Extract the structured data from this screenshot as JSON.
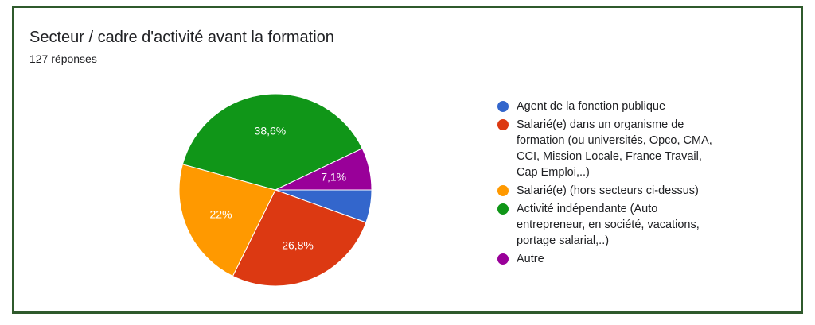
{
  "card": {
    "title": "Secteur / cadre d'activité avant la formation",
    "responses": "127 réponses"
  },
  "chart_data": {
    "type": "pie",
    "title": "Secteur / cadre d'activité avant la formation",
    "categories": [
      "Agent de la fonction publique",
      "Salarié(e) dans un organisme de\nformation (ou universités, Opco, CMA,\nCCI, Mission Locale, France Travail,\nCap Emploi,..)",
      "Salarié(e) (hors secteurs ci-dessus)",
      "Activité indépendante (Auto\nentrepreneur, en société, vacations,\nportage salarial,..)",
      "Autre"
    ],
    "values": [
      5.5,
      26.8,
      22,
      38.6,
      7.1
    ],
    "data_labels": [
      "",
      "26,8%",
      "22%",
      "38,6%",
      "7,1%"
    ],
    "colors": [
      "#3366cc",
      "#dc3912",
      "#ff9900",
      "#109618",
      "#990099"
    ],
    "legend": "right"
  }
}
